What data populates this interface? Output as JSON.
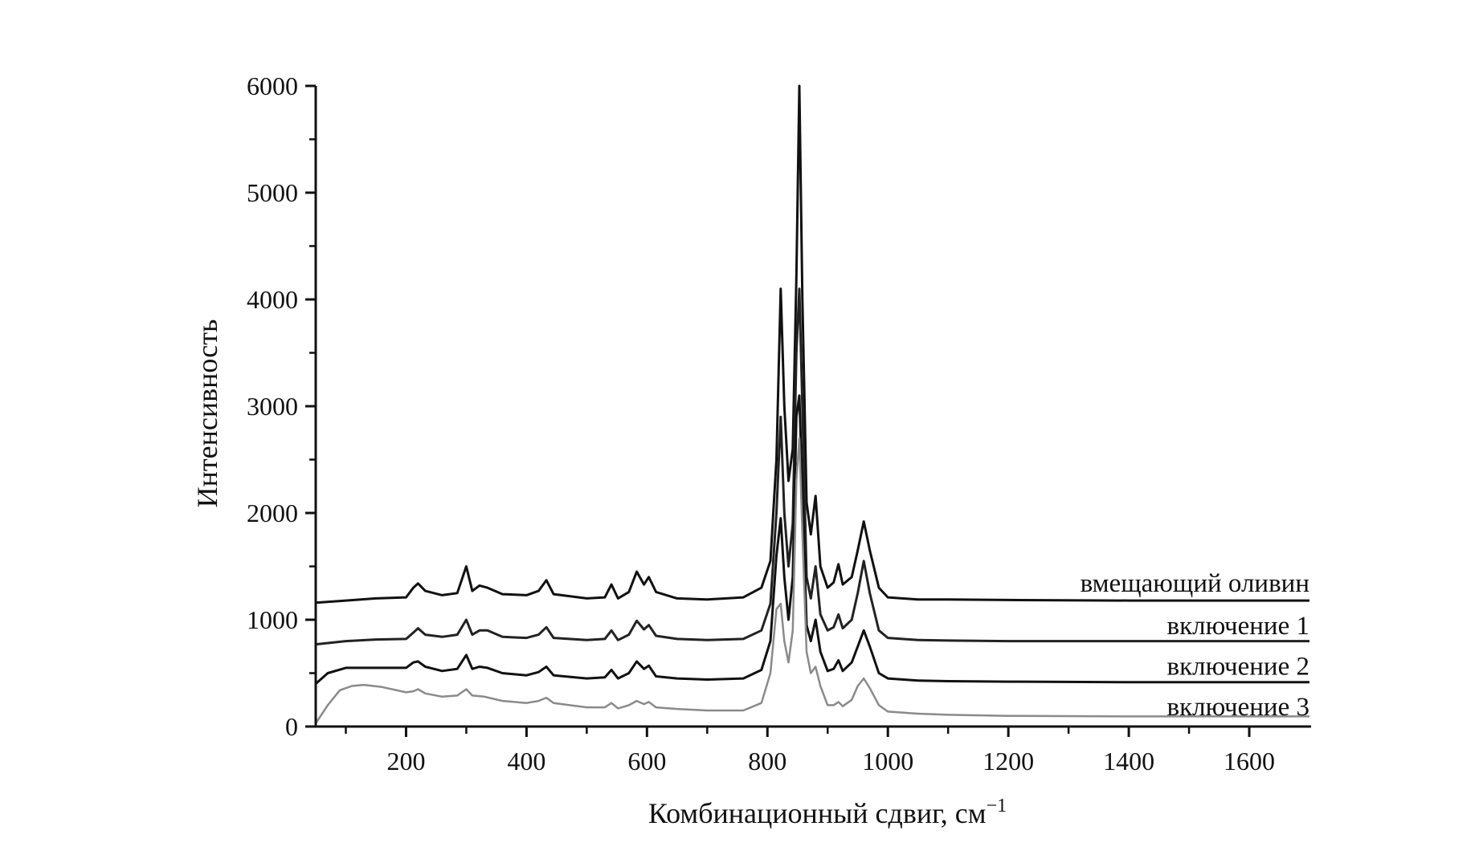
{
  "chart_data": {
    "type": "line",
    "title": "",
    "xlabel": "Комбинационный сдвиг, см",
    "xlabel_superscript": "−1",
    "ylabel": "Интенсивность",
    "xlim": [
      50,
      1700
    ],
    "ylim": [
      0,
      6000
    ],
    "x_ticks": [
      200,
      400,
      600,
      800,
      1000,
      1200,
      1400,
      1600
    ],
    "x_tick_labels": [
      "200",
      "400",
      "600",
      "800",
      "1000",
      "1200",
      "1400",
      "1600"
    ],
    "y_ticks": [
      0,
      1000,
      2000,
      3000,
      4000,
      5000,
      6000
    ],
    "y_tick_labels": [
      "0",
      "1000",
      "2000",
      "3000",
      "4000",
      "5000",
      "6000"
    ],
    "grid": false,
    "legend": "none",
    "series": [
      {
        "name": "вмещающий оливин",
        "color": "#111111",
        "label_value": 1340,
        "points": [
          [
            50,
            1160
          ],
          [
            100,
            1180
          ],
          [
            150,
            1200
          ],
          [
            200,
            1210
          ],
          [
            212,
            1300
          ],
          [
            220,
            1340
          ],
          [
            232,
            1270
          ],
          [
            260,
            1230
          ],
          [
            285,
            1250
          ],
          [
            300,
            1500
          ],
          [
            310,
            1270
          ],
          [
            322,
            1320
          ],
          [
            335,
            1300
          ],
          [
            360,
            1240
          ],
          [
            400,
            1230
          ],
          [
            420,
            1270
          ],
          [
            433,
            1370
          ],
          [
            445,
            1240
          ],
          [
            500,
            1200
          ],
          [
            530,
            1210
          ],
          [
            541,
            1330
          ],
          [
            552,
            1200
          ],
          [
            570,
            1260
          ],
          [
            583,
            1450
          ],
          [
            595,
            1330
          ],
          [
            603,
            1400
          ],
          [
            615,
            1260
          ],
          [
            650,
            1200
          ],
          [
            700,
            1190
          ],
          [
            760,
            1210
          ],
          [
            790,
            1300
          ],
          [
            805,
            1550
          ],
          [
            815,
            2500
          ],
          [
            822,
            4100
          ],
          [
            828,
            3000
          ],
          [
            835,
            2300
          ],
          [
            842,
            2600
          ],
          [
            848,
            4200
          ],
          [
            853,
            6000
          ],
          [
            858,
            4000
          ],
          [
            865,
            2100
          ],
          [
            872,
            1800
          ],
          [
            880,
            2160
          ],
          [
            888,
            1500
          ],
          [
            900,
            1300
          ],
          [
            910,
            1350
          ],
          [
            918,
            1520
          ],
          [
            925,
            1330
          ],
          [
            940,
            1400
          ],
          [
            950,
            1650
          ],
          [
            960,
            1920
          ],
          [
            970,
            1650
          ],
          [
            985,
            1300
          ],
          [
            1000,
            1210
          ],
          [
            1050,
            1190
          ],
          [
            1100,
            1190
          ],
          [
            1200,
            1185
          ],
          [
            1400,
            1180
          ],
          [
            1600,
            1180
          ],
          [
            1700,
            1180
          ]
        ]
      },
      {
        "name": "включение 1",
        "color": "#222222",
        "label_value": 940,
        "points": [
          [
            50,
            770
          ],
          [
            100,
            800
          ],
          [
            150,
            815
          ],
          [
            200,
            820
          ],
          [
            212,
            880
          ],
          [
            220,
            920
          ],
          [
            232,
            860
          ],
          [
            260,
            840
          ],
          [
            285,
            860
          ],
          [
            300,
            1000
          ],
          [
            310,
            860
          ],
          [
            322,
            900
          ],
          [
            335,
            900
          ],
          [
            360,
            840
          ],
          [
            400,
            830
          ],
          [
            420,
            860
          ],
          [
            433,
            930
          ],
          [
            445,
            830
          ],
          [
            500,
            810
          ],
          [
            530,
            820
          ],
          [
            541,
            900
          ],
          [
            552,
            810
          ],
          [
            570,
            860
          ],
          [
            583,
            990
          ],
          [
            595,
            910
          ],
          [
            603,
            950
          ],
          [
            615,
            850
          ],
          [
            650,
            820
          ],
          [
            700,
            810
          ],
          [
            760,
            820
          ],
          [
            790,
            900
          ],
          [
            805,
            1150
          ],
          [
            815,
            2000
          ],
          [
            822,
            2900
          ],
          [
            828,
            2000
          ],
          [
            835,
            1500
          ],
          [
            842,
            1900
          ],
          [
            848,
            3500
          ],
          [
            853,
            4100
          ],
          [
            858,
            3000
          ],
          [
            865,
            1400
          ],
          [
            872,
            1200
          ],
          [
            880,
            1500
          ],
          [
            888,
            1050
          ],
          [
            900,
            900
          ],
          [
            910,
            930
          ],
          [
            918,
            1050
          ],
          [
            925,
            920
          ],
          [
            940,
            1000
          ],
          [
            950,
            1250
          ],
          [
            960,
            1550
          ],
          [
            970,
            1250
          ],
          [
            985,
            900
          ],
          [
            1000,
            830
          ],
          [
            1050,
            810
          ],
          [
            1100,
            805
          ],
          [
            1200,
            800
          ],
          [
            1400,
            800
          ],
          [
            1600,
            800
          ],
          [
            1700,
            800
          ]
        ]
      },
      {
        "name": "включение 2",
        "color": "#111111",
        "label_value": 560,
        "points": [
          [
            50,
            400
          ],
          [
            70,
            500
          ],
          [
            100,
            550
          ],
          [
            150,
            550
          ],
          [
            200,
            550
          ],
          [
            212,
            600
          ],
          [
            220,
            610
          ],
          [
            232,
            560
          ],
          [
            260,
            520
          ],
          [
            285,
            540
          ],
          [
            300,
            670
          ],
          [
            310,
            540
          ],
          [
            322,
            560
          ],
          [
            335,
            550
          ],
          [
            360,
            500
          ],
          [
            400,
            480
          ],
          [
            420,
            510
          ],
          [
            433,
            560
          ],
          [
            445,
            480
          ],
          [
            500,
            450
          ],
          [
            530,
            460
          ],
          [
            541,
            530
          ],
          [
            552,
            450
          ],
          [
            570,
            500
          ],
          [
            583,
            610
          ],
          [
            595,
            540
          ],
          [
            603,
            570
          ],
          [
            615,
            470
          ],
          [
            650,
            450
          ],
          [
            700,
            440
          ],
          [
            760,
            450
          ],
          [
            790,
            530
          ],
          [
            805,
            800
          ],
          [
            815,
            1600
          ],
          [
            822,
            1950
          ],
          [
            828,
            1400
          ],
          [
            835,
            1000
          ],
          [
            842,
            1400
          ],
          [
            848,
            2900
          ],
          [
            853,
            3100
          ],
          [
            858,
            2200
          ],
          [
            865,
            950
          ],
          [
            872,
            800
          ],
          [
            880,
            1000
          ],
          [
            888,
            700
          ],
          [
            900,
            520
          ],
          [
            910,
            540
          ],
          [
            918,
            620
          ],
          [
            925,
            520
          ],
          [
            940,
            600
          ],
          [
            950,
            750
          ],
          [
            960,
            900
          ],
          [
            970,
            750
          ],
          [
            985,
            500
          ],
          [
            1000,
            450
          ],
          [
            1050,
            430
          ],
          [
            1100,
            425
          ],
          [
            1200,
            420
          ],
          [
            1400,
            415
          ],
          [
            1600,
            415
          ],
          [
            1700,
            415
          ]
        ]
      },
      {
        "name": "включение 3",
        "color": "#8a8a8a",
        "label_value": 180,
        "points": [
          [
            50,
            30
          ],
          [
            70,
            200
          ],
          [
            90,
            340
          ],
          [
            110,
            380
          ],
          [
            130,
            390
          ],
          [
            160,
            370
          ],
          [
            200,
            320
          ],
          [
            212,
            330
          ],
          [
            220,
            350
          ],
          [
            232,
            310
          ],
          [
            260,
            280
          ],
          [
            285,
            290
          ],
          [
            300,
            350
          ],
          [
            310,
            290
          ],
          [
            330,
            280
          ],
          [
            360,
            240
          ],
          [
            400,
            220
          ],
          [
            420,
            240
          ],
          [
            433,
            270
          ],
          [
            445,
            220
          ],
          [
            500,
            180
          ],
          [
            530,
            180
          ],
          [
            541,
            220
          ],
          [
            552,
            170
          ],
          [
            570,
            200
          ],
          [
            583,
            240
          ],
          [
            595,
            210
          ],
          [
            603,
            230
          ],
          [
            615,
            180
          ],
          [
            650,
            165
          ],
          [
            700,
            150
          ],
          [
            760,
            150
          ],
          [
            790,
            220
          ],
          [
            805,
            500
          ],
          [
            815,
            1100
          ],
          [
            822,
            1150
          ],
          [
            828,
            800
          ],
          [
            835,
            600
          ],
          [
            842,
            900
          ],
          [
            848,
            2300
          ],
          [
            853,
            2700
          ],
          [
            858,
            1800
          ],
          [
            865,
            700
          ],
          [
            872,
            500
          ],
          [
            880,
            560
          ],
          [
            888,
            380
          ],
          [
            900,
            200
          ],
          [
            910,
            200
          ],
          [
            918,
            230
          ],
          [
            925,
            190
          ],
          [
            940,
            250
          ],
          [
            950,
            380
          ],
          [
            960,
            450
          ],
          [
            970,
            360
          ],
          [
            985,
            200
          ],
          [
            1000,
            140
          ],
          [
            1050,
            120
          ],
          [
            1100,
            110
          ],
          [
            1200,
            100
          ],
          [
            1400,
            95
          ],
          [
            1600,
            95
          ],
          [
            1700,
            95
          ]
        ]
      }
    ]
  }
}
